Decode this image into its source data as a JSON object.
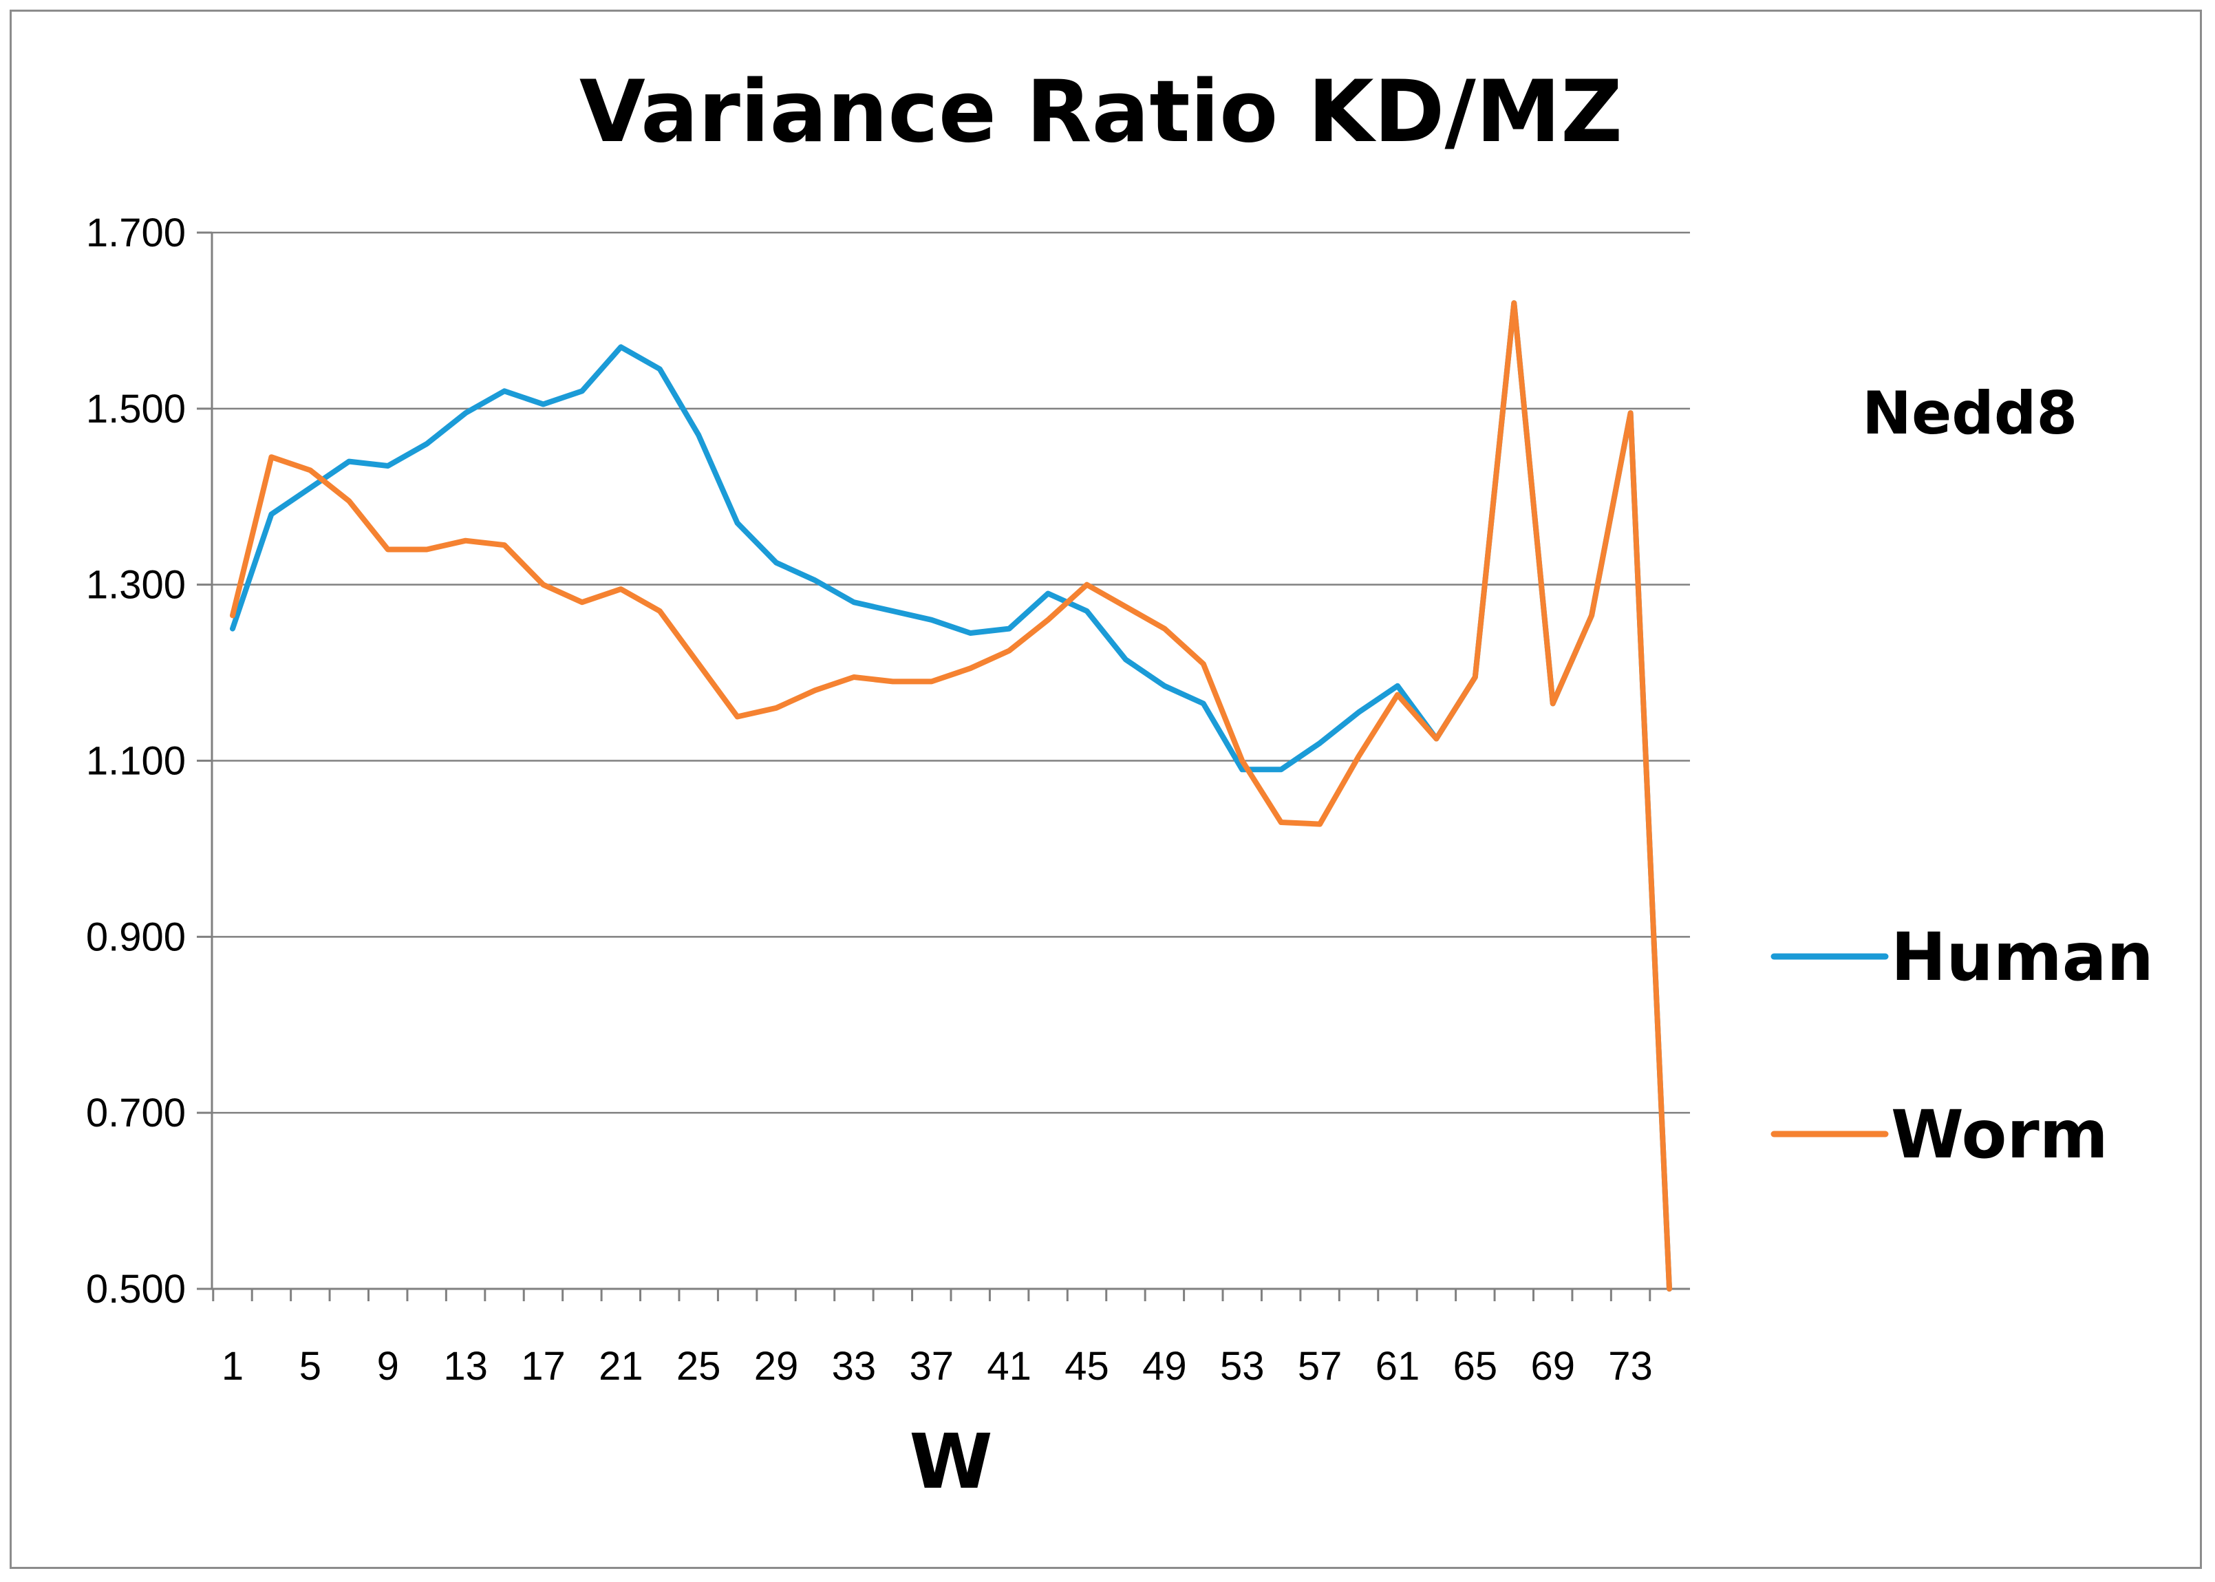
{
  "chart_data": {
    "type": "line",
    "title": "Variance Ratio KD/MZ",
    "xlabel": "W",
    "ylabel": "",
    "annotation": "Nedd8",
    "ylim": [
      0.5,
      1.7
    ],
    "yticks": [
      "1.700",
      "1.500",
      "1.300",
      "1.100",
      "0.900",
      "0.700",
      "0.500"
    ],
    "ytick_values": [
      1.7,
      1.5,
      1.3,
      1.1,
      0.9,
      0.7,
      0.5
    ],
    "xlim": [
      1,
      75
    ],
    "xticks": [
      1,
      5,
      9,
      13,
      17,
      21,
      25,
      29,
      33,
      37,
      41,
      45,
      49,
      53,
      57,
      61,
      65,
      69,
      73
    ],
    "legend_position": "right",
    "series": [
      {
        "name": "Human",
        "color": "#1b9bd7",
        "x": [
          1,
          3,
          5,
          7,
          9,
          11,
          13,
          15,
          17,
          19,
          21,
          23,
          25,
          27,
          29,
          31,
          33,
          35,
          37,
          39,
          41,
          43,
          45,
          47,
          49,
          51,
          53,
          55,
          57,
          59,
          61,
          63,
          65,
          67,
          69,
          71,
          73,
          75
        ],
        "y": [
          1.25,
          1.38,
          1.41,
          1.44,
          1.435,
          1.46,
          1.495,
          1.52,
          1.505,
          1.52,
          1.57,
          1.545,
          1.47,
          1.37,
          1.325,
          1.305,
          1.28,
          1.27,
          1.26,
          1.245,
          1.25,
          1.29,
          1.27,
          1.215,
          1.185,
          1.165,
          1.09,
          1.09,
          1.12,
          1.155,
          1.185,
          1.125,
          1.195,
          1.62,
          1.165,
          1.265,
          1.495,
          0.5
        ]
      },
      {
        "name": "Worm",
        "color": "#f58231",
        "x": [
          1,
          3,
          5,
          7,
          9,
          11,
          13,
          15,
          17,
          19,
          21,
          23,
          25,
          27,
          29,
          31,
          33,
          35,
          37,
          39,
          41,
          43,
          45,
          47,
          49,
          51,
          53,
          55,
          57,
          59,
          61,
          63,
          65,
          67,
          69,
          71,
          73,
          75
        ],
        "y": [
          1.265,
          1.445,
          1.43,
          1.395,
          1.34,
          1.34,
          1.35,
          1.345,
          1.3,
          1.28,
          1.295,
          1.27,
          1.21,
          1.15,
          1.16,
          1.18,
          1.195,
          1.19,
          1.19,
          1.205,
          1.225,
          1.26,
          1.3,
          1.275,
          1.25,
          1.21,
          1.1,
          1.03,
          1.028,
          1.105,
          1.175,
          1.125,
          1.195,
          1.62,
          1.165,
          1.265,
          1.495,
          0.5
        ]
      }
    ]
  }
}
